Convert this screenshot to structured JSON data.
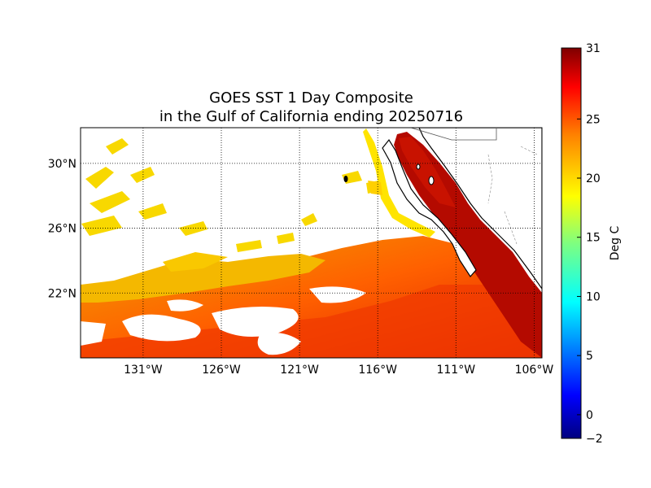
{
  "title": {
    "line1": "GOES SST 1 Day Composite",
    "line2": "in the Gulf of California ending 20250716"
  },
  "map": {
    "lon_range": [
      -135.0,
      -105.5
    ],
    "lat_range": [
      18.0,
      32.2
    ],
    "lon_ticks": [
      "131°W",
      "126°W",
      "121°W",
      "116°W",
      "111°W",
      "106°W"
    ],
    "lon_tick_values": [
      -131,
      -126,
      -121,
      -116,
      -111,
      -106
    ],
    "lat_ticks": [
      "30°N",
      "26°N",
      "22°N"
    ],
    "lat_tick_values": [
      30,
      26,
      22
    ],
    "grid": true,
    "no_data_color": "#ffffff",
    "land_color": "#ffffff",
    "coastline_color": "#000000"
  },
  "colorbar": {
    "label": "Deg C",
    "min": -2,
    "max": 31,
    "ticks": [
      "31",
      "25",
      "20",
      "15",
      "10",
      "5",
      "0",
      "−2"
    ],
    "tick_values": [
      31,
      25,
      20,
      15,
      10,
      5,
      0,
      -2
    ],
    "colormap": "jet",
    "colormap_stops": [
      "#00007f",
      "#0000ff",
      "#007fff",
      "#00ffff",
      "#7fff7f",
      "#ffff00",
      "#ff7f00",
      "#ff0000",
      "#7f0000"
    ]
  }
}
